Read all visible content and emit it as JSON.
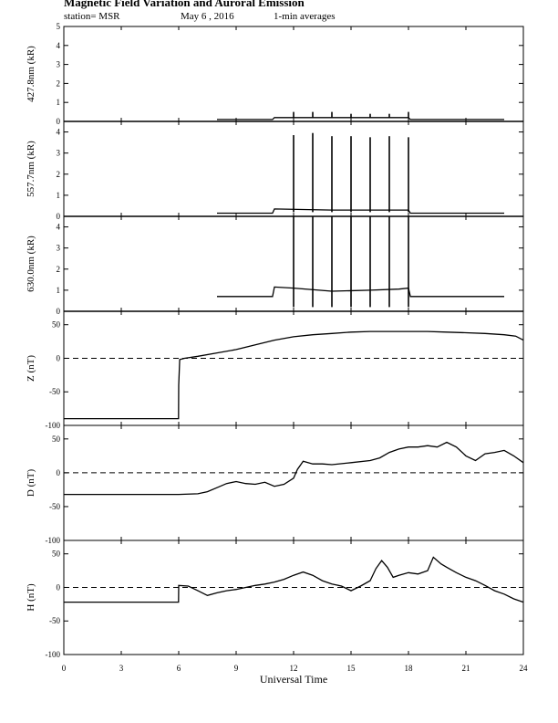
{
  "header": {
    "title": "Magnetic Field Variation and Auroral Emission",
    "station": "station= MSR",
    "date": "May 6  , 2016",
    "averaging": "1-min averages"
  },
  "chart_data": [
    {
      "type": "line",
      "ylabel": "427.8nm (kR)",
      "ylim": [
        0,
        5
      ],
      "yticks": [
        0,
        1,
        2,
        3,
        4,
        5
      ],
      "ytick_labels": [
        "0",
        "1",
        "2",
        "3",
        "4",
        "5"
      ],
      "xlim": [
        0,
        24
      ],
      "zero_line": false,
      "series": [
        {
          "x": [
            8.0,
            10.9,
            11.0,
            18.0,
            18.1,
            23.0
          ],
          "y": [
            0.1,
            0.1,
            0.2,
            0.2,
            0.1,
            0.1
          ]
        }
      ],
      "spikes": [
        {
          "x": 12.0,
          "y": 0.5
        },
        {
          "x": 13.0,
          "y": 0.5
        },
        {
          "x": 14.0,
          "y": 0.5
        },
        {
          "x": 15.0,
          "y": 0.4
        },
        {
          "x": 16.0,
          "y": 0.4
        },
        {
          "x": 17.0,
          "y": 0.4
        },
        {
          "x": 18.0,
          "y": 0.5
        }
      ]
    },
    {
      "type": "line",
      "ylabel": "557.7nm (kR)",
      "ylim": [
        0,
        4.5
      ],
      "yticks": [
        0,
        1,
        2,
        3,
        4
      ],
      "ytick_labels": [
        "0",
        "1",
        "2",
        "3",
        "4"
      ],
      "xlim": [
        0,
        24
      ],
      "zero_line": false,
      "series": [
        {
          "x": [
            8.0,
            10.9,
            11.0,
            14.0,
            18.0,
            18.1,
            23.0
          ],
          "y": [
            0.15,
            0.15,
            0.35,
            0.3,
            0.3,
            0.15,
            0.15
          ]
        }
      ],
      "spikes": [
        {
          "x": 12.0,
          "y": 3.85
        },
        {
          "x": 13.0,
          "y": 3.95
        },
        {
          "x": 14.0,
          "y": 3.8
        },
        {
          "x": 15.0,
          "y": 3.8
        },
        {
          "x": 16.0,
          "y": 3.75
        },
        {
          "x": 17.0,
          "y": 3.8
        },
        {
          "x": 18.0,
          "y": 3.75
        }
      ]
    },
    {
      "type": "line",
      "ylabel": "630.0nm (kR)",
      "ylim": [
        0,
        4.5
      ],
      "yticks": [
        0,
        1,
        2,
        3,
        4
      ],
      "ytick_labels": [
        "0",
        "1",
        "2",
        "3",
        "4"
      ],
      "xlim": [
        0,
        24
      ],
      "zero_line": false,
      "series": [
        {
          "x": [
            8.0,
            10.9,
            11.0,
            12.0,
            14.0,
            16.0,
            17.5,
            18.0,
            18.1,
            23.0
          ],
          "y": [
            0.7,
            0.7,
            1.15,
            1.1,
            0.95,
            1.0,
            1.05,
            1.1,
            0.7,
            0.7
          ]
        }
      ],
      "spikes": [
        {
          "x": 12.0,
          "y": 4.5
        },
        {
          "x": 13.0,
          "y": 4.5
        },
        {
          "x": 14.0,
          "y": 4.5
        },
        {
          "x": 15.0,
          "y": 4.5
        },
        {
          "x": 16.0,
          "y": 4.5
        },
        {
          "x": 17.0,
          "y": 4.5
        },
        {
          "x": 18.0,
          "y": 4.5
        }
      ]
    },
    {
      "type": "line",
      "ylabel": "Z (nT)",
      "ylim": [
        -100,
        70
      ],
      "yticks": [
        -100,
        -50,
        0,
        50
      ],
      "ytick_labels": [
        "-100",
        "-50",
        "0",
        "50"
      ],
      "xlim": [
        0,
        24
      ],
      "zero_line": true,
      "series": [
        {
          "x": [
            0,
            5.99,
            6.0,
            6.05,
            6.3,
            7.0,
            8.0,
            9.0,
            10.0,
            11.0,
            12.0,
            13.0,
            14.0,
            15.0,
            16.0,
            17.0,
            18.0,
            19.0,
            20.0,
            21.0,
            22.0,
            23.0,
            23.6,
            24.0
          ],
          "y": [
            -90,
            -90,
            -40,
            -2,
            0,
            3,
            8,
            13,
            20,
            27,
            32,
            35,
            37,
            39,
            40,
            40,
            40,
            40,
            39,
            38,
            37,
            35,
            33,
            27
          ]
        }
      ]
    },
    {
      "type": "line",
      "ylabel": "D (nT)",
      "ylim": [
        -100,
        70
      ],
      "yticks": [
        -100,
        -50,
        0,
        50
      ],
      "ytick_labels": [
        "-100",
        "-50",
        "0",
        "50"
      ],
      "xlim": [
        0,
        24
      ],
      "zero_line": true,
      "series": [
        {
          "x": [
            0,
            6.0,
            7.0,
            7.5,
            8.0,
            8.5,
            9.0,
            9.5,
            10.0,
            10.5,
            11.0,
            11.5,
            12.0,
            12.2,
            12.5,
            13.0,
            13.5,
            14.0,
            15.0,
            16.0,
            16.5,
            17.0,
            17.5,
            18.0,
            18.5,
            19.0,
            19.5,
            20.0,
            20.5,
            21.0,
            21.5,
            22.0,
            22.5,
            23.0,
            23.5,
            24.0
          ],
          "y": [
            -32,
            -32,
            -31,
            -28,
            -22,
            -16,
            -13,
            -16,
            -17,
            -14,
            -20,
            -17,
            -8,
            5,
            17,
            13,
            13,
            12,
            15,
            18,
            22,
            30,
            35,
            38,
            38,
            40,
            38,
            45,
            38,
            25,
            18,
            28,
            30,
            33,
            25,
            15
          ]
        }
      ]
    },
    {
      "type": "line",
      "ylabel": "H (nT)",
      "ylim": [
        -100,
        70
      ],
      "yticks": [
        -100,
        -50,
        0,
        50
      ],
      "ytick_labels": [
        "-100",
        "-50",
        "0",
        "50"
      ],
      "xlim": [
        0,
        24
      ],
      "zero_line": true,
      "series": [
        {
          "x": [
            0,
            5.99,
            6.0,
            6.5,
            7.0,
            7.5,
            8.0,
            8.5,
            9.0,
            9.5,
            10.0,
            10.5,
            11.0,
            11.5,
            12.0,
            12.5,
            13.0,
            13.5,
            14.0,
            14.5,
            15.0,
            15.5,
            16.0,
            16.3,
            16.6,
            16.9,
            17.2,
            17.5,
            18.0,
            18.5,
            19.0,
            19.3,
            19.7,
            20.0,
            20.5,
            21.0,
            21.5,
            22.0,
            22.5,
            23.0,
            23.5,
            24.0
          ],
          "y": [
            -22,
            -22,
            3,
            2,
            -5,
            -12,
            -8,
            -5,
            -3,
            0,
            3,
            5,
            8,
            12,
            18,
            23,
            18,
            10,
            5,
            2,
            -5,
            2,
            10,
            28,
            40,
            30,
            15,
            18,
            22,
            20,
            25,
            45,
            35,
            30,
            22,
            15,
            10,
            3,
            -5,
            -10,
            -17,
            -22
          ]
        }
      ]
    }
  ],
  "x_axis": {
    "label": "Universal Time",
    "ticks": [
      0,
      3,
      6,
      9,
      12,
      15,
      18,
      21,
      24
    ],
    "tick_labels": [
      "0",
      "3",
      "6",
      "9",
      "12",
      "15",
      "18",
      "21",
      "24"
    ]
  }
}
